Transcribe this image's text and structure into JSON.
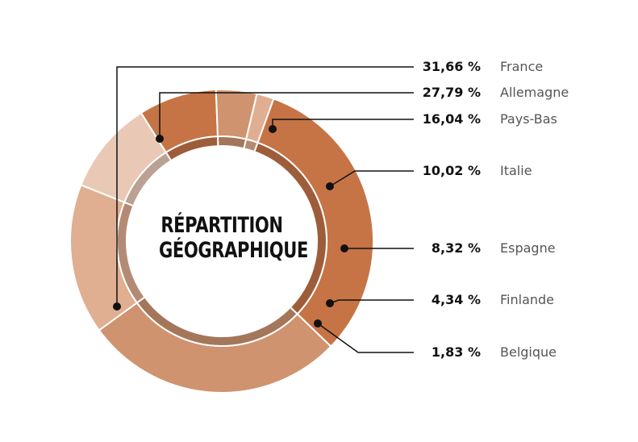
{
  "chart_data": {
    "type": "pie",
    "title": "RÉPARTITION GÉOGRAPHIQUE",
    "title_lines": [
      "RÉPARTITION",
      "GÉOGRAPHIQUE"
    ],
    "categories": [
      "France",
      "Allemagne",
      "Pays-Bas",
      "Italie",
      "Espagne",
      "Finlande",
      "Belgique"
    ],
    "values": [
      31.66,
      27.79,
      16.04,
      10.02,
      8.32,
      4.34,
      1.83
    ],
    "value_labels": [
      "31,66 %",
      "27,79 %",
      "16,04 %",
      "10,02 %",
      "8,32 %",
      "4,34 %",
      "1,83 %"
    ],
    "colors": [
      "#c67446",
      "#cf936f",
      "#e0ae91",
      "#e9c9b5",
      "#c67446",
      "#cf936f",
      "#e0ae91"
    ],
    "inner_ring_colors": [
      "#9e5d3a",
      "#a4765a",
      "#b38b74",
      "#bba193",
      "#9e5d3a",
      "#a4765a",
      "#b38b74"
    ],
    "legend_placement": "right"
  }
}
